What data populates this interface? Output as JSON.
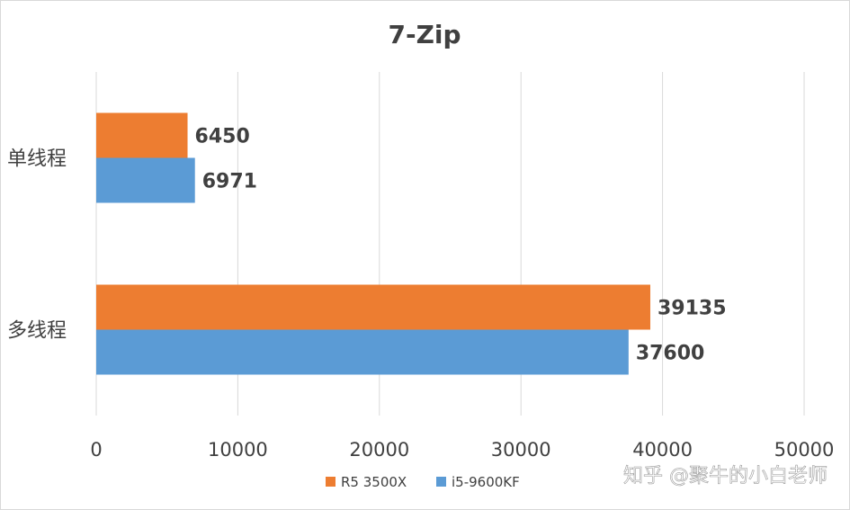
{
  "chart_data": {
    "type": "bar",
    "orientation": "horizontal",
    "title": "7-Zip",
    "categories": [
      "单线程",
      "多线程"
    ],
    "series": [
      {
        "name": "R5 3500X",
        "color": "#ED7D31",
        "values": [
          6450,
          39135
        ]
      },
      {
        "name": "i5-9600KF",
        "color": "#5B9BD5",
        "values": [
          6971,
          37600
        ]
      }
    ],
    "xlim": [
      0,
      50000
    ],
    "xticks": [
      0,
      10000,
      20000,
      30000,
      40000,
      50000
    ],
    "grid": true,
    "legend": "bottom"
  },
  "watermark": "知乎 @聚牛的小白老师"
}
